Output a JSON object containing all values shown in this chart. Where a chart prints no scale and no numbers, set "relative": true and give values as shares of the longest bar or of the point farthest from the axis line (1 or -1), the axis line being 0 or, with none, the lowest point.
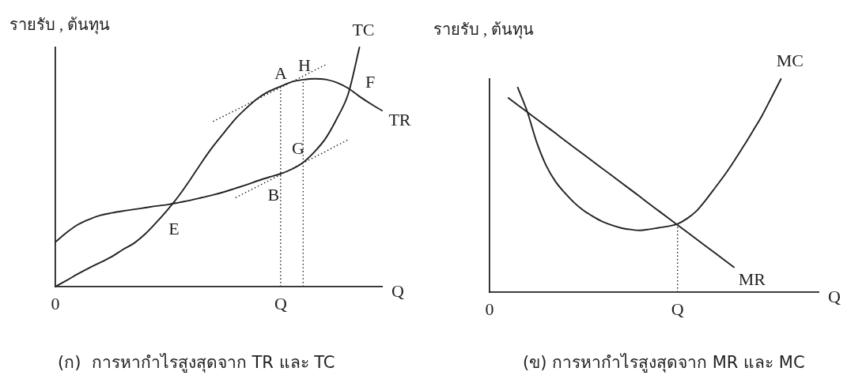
{
  "chart_data": [
    {
      "type": "line",
      "title": "(ก)  การหากำไรสูงสุดจาก TR และ TC",
      "xlabel": "Q",
      "ylabel": "รายรับ , ต้นทุน",
      "relative": true,
      "tick_labels": "x",
      "marker": "none",
      "line_style": "solid",
      "categories": [
        "0",
        null,
        null,
        null,
        null,
        null,
        null,
        null,
        null,
        null,
        null,
        null,
        null,
        null,
        null,
        null,
        null,
        null,
        null,
        null,
        "Q",
        null,
        null,
        null,
        null,
        null,
        null,
        null,
        null,
        null
      ],
      "series": [
        {
          "name": "TC",
          "color": "#222222",
          "values": [
            0.186,
            0.226,
            0.259,
            0.281,
            0.298,
            0.308,
            0.316,
            0.323,
            0.33,
            0.337,
            0.343,
            0.352,
            0.361,
            0.372,
            0.383,
            0.396,
            0.411,
            0.426,
            0.443,
            0.458,
            0.472,
            0.491,
            0.519,
            0.563,
            0.62,
            0.703,
            0.805,
            1,
            null,
            null
          ]
        },
        {
          "name": "TR",
          "color": "#222222",
          "values": [
            0,
            0.026,
            0.053,
            0.078,
            0.101,
            0.125,
            0.155,
            0.182,
            0.221,
            0.27,
            0.323,
            0.382,
            0.449,
            0.52,
            0.586,
            0.645,
            0.702,
            0.748,
            0.788,
            0.817,
            0.837,
            0.856,
            0.865,
            0.869,
            0.866,
            0.853,
            0.829,
            0.795,
            0.764,
            0.736
          ]
        },
        {
          "color": "#222222",
          "line_style": "dotted",
          "values": [
            null,
            null,
            null,
            null,
            null,
            null,
            null,
            null,
            null,
            null,
            null,
            null,
            null,
            null,
            0.69,
            0.714,
            0.737,
            0.761,
            0.785,
            0.809,
            0.832,
            0.856,
            0.88,
            0.904,
            0.927,
            null,
            null,
            null,
            null,
            null
          ]
        },
        {
          "color": "#222222",
          "line_style": "dotted",
          "values": [
            null,
            null,
            null,
            null,
            null,
            null,
            null,
            null,
            null,
            null,
            null,
            null,
            null,
            null,
            null,
            null,
            0.372,
            0.396,
            0.42,
            0.444,
            0.469,
            0.493,
            0.517,
            0.541,
            0.565,
            0.59,
            0.614,
            null,
            null,
            null
          ]
        }
      ],
      "ref_lines": [
        {
          "axis": "x",
          "value": "Q",
          "color": "#222222",
          "line_style": "dotted"
        }
      ],
      "annotations": [
        {
          "text": "A",
          "x": "Q",
          "y": 0.837
        },
        "H",
        "F",
        "G",
        {
          "text": "B",
          "x": "Q",
          "y": 0.472
        },
        "E"
      ]
    },
    {
      "type": "line",
      "title": "(ข) การหากำไรสูงสุดจาก MR และ MC",
      "xlabel": "Q",
      "ylabel": "รายรับ , ต้นทุน",
      "relative": true,
      "tick_labels": "x",
      "marker": "none",
      "line_style": "solid",
      "categories": [
        "0",
        null,
        null,
        null,
        null,
        null,
        null,
        null,
        null,
        null,
        null,
        null,
        null,
        null,
        null,
        null,
        null,
        null,
        null,
        null,
        "Q",
        null,
        null,
        null,
        null,
        null,
        null,
        null,
        null,
        null,
        null,
        null,
        null,
        null,
        null,
        null
      ],
      "series": [
        {
          "name": "MC",
          "color": "#222222",
          "values": [
            null,
            null,
            null,
            0.96,
            0.848,
            0.705,
            0.596,
            0.52,
            0.466,
            0.42,
            0.383,
            0.355,
            0.331,
            0.314,
            0.301,
            0.294,
            0.29,
            0.295,
            0.302,
            0.309,
            0.32,
            0.345,
            0.38,
            0.432,
            0.49,
            0.549,
            0.614,
            0.683,
            0.755,
            0.829,
            0.914,
            1,
            null,
            null,
            null,
            null
          ]
        },
        {
          "name": "MR",
          "color": "#222222",
          "values": [
            null,
            null,
            0.911,
            0.878,
            0.845,
            0.812,
            0.779,
            0.746,
            0.712,
            0.679,
            0.646,
            0.613,
            0.58,
            0.547,
            0.514,
            0.481,
            0.448,
            0.414,
            0.381,
            0.348,
            0.315,
            0.282,
            0.249,
            0.216,
            0.183,
            0.15,
            0.117,
            null,
            null,
            null,
            null,
            null,
            null,
            null,
            null,
            null
          ]
        }
      ],
      "ref_lines": [
        {
          "axis": "x",
          "value": "Q",
          "color": "#222222",
          "line_style": "dotted"
        }
      ]
    }
  ]
}
